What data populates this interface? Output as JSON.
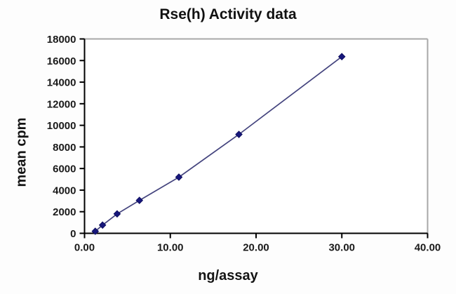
{
  "chart_data": {
    "type": "line",
    "title": "Rse(h) Activity data",
    "xlabel": "ng/assay",
    "ylabel": "mean cpm",
    "x": [
      1.25,
      2.1,
      3.8,
      6.4,
      11.0,
      18.0,
      30.0
    ],
    "y": [
      190,
      760,
      1800,
      3050,
      5200,
      9160,
      16360
    ],
    "xlim": [
      0,
      40
    ],
    "ylim": [
      0,
      18000
    ],
    "x_ticks": [
      "0.00",
      "10.00",
      "20.00",
      "30.00",
      "40.00"
    ],
    "y_ticks": [
      "0",
      "2000",
      "4000",
      "6000",
      "8000",
      "10000",
      "12000",
      "14000",
      "16000",
      "18000"
    ],
    "grid": false,
    "legend": false,
    "marker": "diamond",
    "colors": {
      "series": "#17177c",
      "series_edge": "#0e0e60",
      "line": "#44447e",
      "axis": "#000000",
      "plot_border": "#a8a8a8",
      "text": "#1a1a1a",
      "background": "#fdfdfd",
      "plot_background": "#ffffff"
    }
  }
}
